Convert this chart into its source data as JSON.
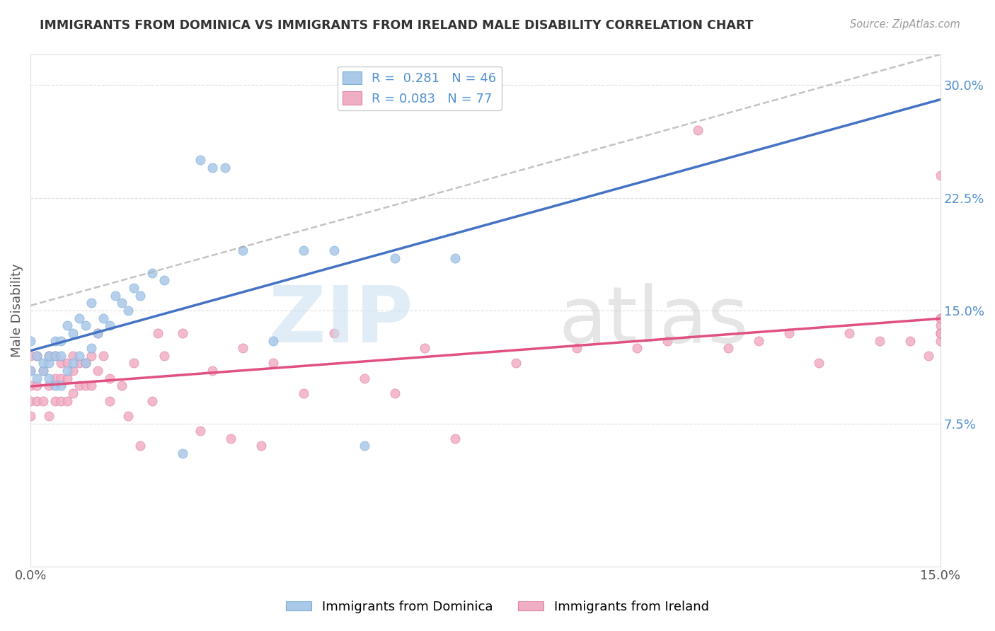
{
  "title": "IMMIGRANTS FROM DOMINICA VS IMMIGRANTS FROM IRELAND MALE DISABILITY CORRELATION CHART",
  "source": "Source: ZipAtlas.com",
  "ylabel": "Male Disability",
  "xlabel": "",
  "xlim": [
    0.0,
    0.15
  ],
  "ylim": [
    -0.02,
    0.32
  ],
  "yticks": [
    0.075,
    0.15,
    0.225,
    0.3
  ],
  "ytick_labels_left": [
    "",
    "",
    "",
    ""
  ],
  "ytick_labels_right": [
    "7.5%",
    "15.0%",
    "22.5%",
    "30.0%"
  ],
  "xticks": [
    0.0,
    0.15
  ],
  "xtick_labels": [
    "0.0%",
    "15.0%"
  ],
  "legend_label1": "R =  0.281   N = 46",
  "legend_label2": "R = 0.083   N = 77",
  "series1_color": "#aac8e8",
  "series2_color": "#f0aec4",
  "series1_edge": "#7aaed8",
  "series2_edge": "#e080a8",
  "line1_color": "#4472c4",
  "line2_color": "#e05080",
  "line_dashed_color": "#aaaaaa",
  "background_color": "#ffffff",
  "grid_color": "#dddddd",
  "right_axis_color": "#5090d0",
  "dominica_x": [
    0.0,
    0.0,
    0.001,
    0.001,
    0.002,
    0.002,
    0.003,
    0.003,
    0.003,
    0.004,
    0.004,
    0.004,
    0.005,
    0.005,
    0.005,
    0.006,
    0.006,
    0.007,
    0.007,
    0.008,
    0.008,
    0.009,
    0.009,
    0.01,
    0.01,
    0.011,
    0.012,
    0.013,
    0.014,
    0.015,
    0.016,
    0.017,
    0.018,
    0.02,
    0.022,
    0.025,
    0.028,
    0.03,
    0.032,
    0.035,
    0.04,
    0.045,
    0.05,
    0.055,
    0.06,
    0.07
  ],
  "dominica_y": [
    0.11,
    0.13,
    0.105,
    0.12,
    0.11,
    0.115,
    0.105,
    0.115,
    0.12,
    0.1,
    0.12,
    0.13,
    0.1,
    0.12,
    0.13,
    0.11,
    0.14,
    0.115,
    0.135,
    0.12,
    0.145,
    0.115,
    0.14,
    0.125,
    0.155,
    0.135,
    0.145,
    0.14,
    0.16,
    0.155,
    0.15,
    0.165,
    0.16,
    0.175,
    0.17,
    0.055,
    0.25,
    0.245,
    0.245,
    0.19,
    0.13,
    0.19,
    0.19,
    0.06,
    0.185,
    0.185
  ],
  "ireland_x": [
    0.0,
    0.0,
    0.0,
    0.0,
    0.0,
    0.001,
    0.001,
    0.001,
    0.002,
    0.002,
    0.003,
    0.003,
    0.003,
    0.004,
    0.004,
    0.004,
    0.005,
    0.005,
    0.005,
    0.006,
    0.006,
    0.006,
    0.007,
    0.007,
    0.007,
    0.008,
    0.008,
    0.009,
    0.009,
    0.01,
    0.01,
    0.011,
    0.011,
    0.012,
    0.013,
    0.013,
    0.015,
    0.016,
    0.017,
    0.018,
    0.02,
    0.021,
    0.022,
    0.025,
    0.028,
    0.03,
    0.033,
    0.035,
    0.038,
    0.04,
    0.045,
    0.05,
    0.055,
    0.06,
    0.065,
    0.07,
    0.08,
    0.09,
    0.1,
    0.105,
    0.11,
    0.115,
    0.12,
    0.125,
    0.13,
    0.135,
    0.14,
    0.145,
    0.148,
    0.15,
    0.15,
    0.15,
    0.15,
    0.15,
    0.15,
    0.15,
    0.15
  ],
  "ireland_y": [
    0.08,
    0.09,
    0.1,
    0.11,
    0.12,
    0.09,
    0.1,
    0.12,
    0.09,
    0.11,
    0.08,
    0.1,
    0.12,
    0.09,
    0.105,
    0.12,
    0.09,
    0.105,
    0.115,
    0.09,
    0.105,
    0.115,
    0.095,
    0.11,
    0.12,
    0.1,
    0.115,
    0.1,
    0.115,
    0.1,
    0.12,
    0.11,
    0.135,
    0.12,
    0.09,
    0.105,
    0.1,
    0.08,
    0.115,
    0.06,
    0.09,
    0.135,
    0.12,
    0.135,
    0.07,
    0.11,
    0.065,
    0.125,
    0.06,
    0.115,
    0.095,
    0.135,
    0.105,
    0.095,
    0.125,
    0.065,
    0.115,
    0.125,
    0.125,
    0.13,
    0.27,
    0.125,
    0.13,
    0.135,
    0.115,
    0.135,
    0.13,
    0.13,
    0.12,
    0.13,
    0.135,
    0.14,
    0.24,
    0.135,
    0.135,
    0.145,
    0.145
  ]
}
